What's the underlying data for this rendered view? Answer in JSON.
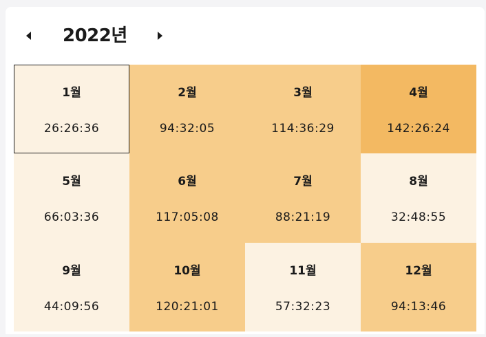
{
  "header": {
    "year_title": "2022년"
  },
  "colors": {
    "light": "#fcf2e2",
    "medium": "#f7cd8b",
    "dark": "#f3b962",
    "selected_border": "#1a1a1a"
  },
  "months": [
    {
      "label": "1월",
      "time": "26:26:36",
      "level": "light",
      "selected": true
    },
    {
      "label": "2월",
      "time": "94:32:05",
      "level": "medium",
      "selected": false
    },
    {
      "label": "3월",
      "time": "114:36:29",
      "level": "medium",
      "selected": false
    },
    {
      "label": "4월",
      "time": "142:26:24",
      "level": "dark",
      "selected": false
    },
    {
      "label": "5월",
      "time": "66:03:36",
      "level": "light",
      "selected": false
    },
    {
      "label": "6월",
      "time": "117:05:08",
      "level": "medium",
      "selected": false
    },
    {
      "label": "7월",
      "time": "88:21:19",
      "level": "medium",
      "selected": false
    },
    {
      "label": "8월",
      "time": "32:48:55",
      "level": "light",
      "selected": false
    },
    {
      "label": "9월",
      "time": "44:09:56",
      "level": "light",
      "selected": false
    },
    {
      "label": "10월",
      "time": "120:21:01",
      "level": "medium",
      "selected": false
    },
    {
      "label": "11월",
      "time": "57:32:23",
      "level": "light",
      "selected": false
    },
    {
      "label": "12월",
      "time": "94:13:46",
      "level": "medium",
      "selected": false
    }
  ]
}
